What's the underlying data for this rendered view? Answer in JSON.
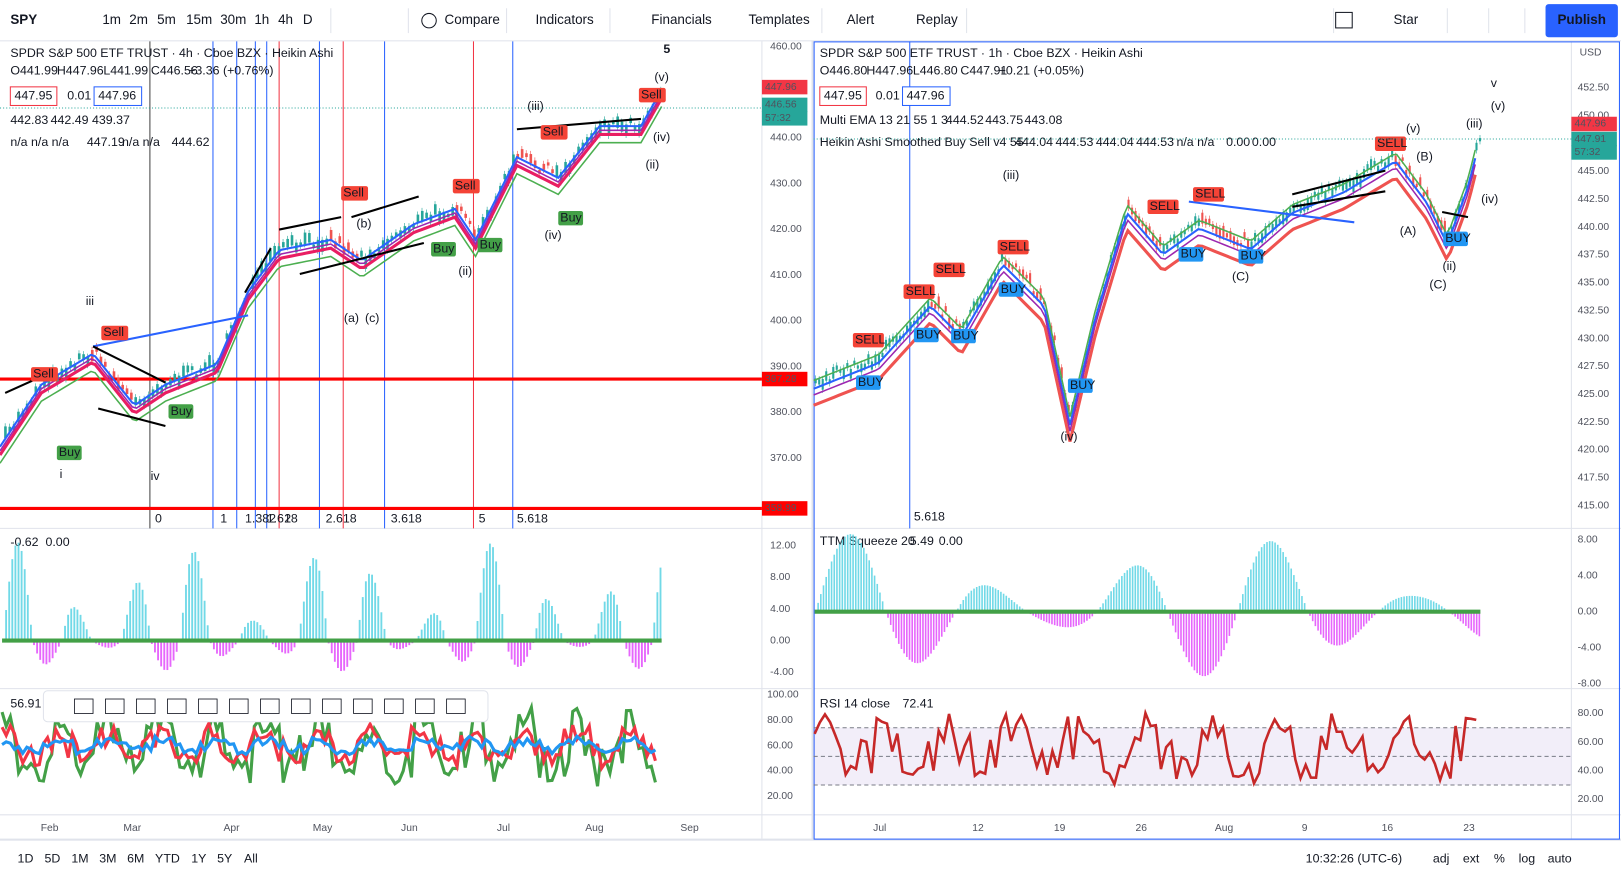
{
  "toolbar": {
    "symbol": "SPY",
    "intervals": [
      "1m",
      "2m",
      "5m",
      "15m",
      "30m",
      "1h",
      "4h",
      "D"
    ],
    "actions": [
      "Compare",
      "Indicators",
      "Financials",
      "Templates",
      "Alert",
      "Replay"
    ],
    "layout_name": "Star",
    "publish": "Publish"
  },
  "left": {
    "title": "SPDR S&P 500 ETF TRUST · 4h · Cboe BZX · Heikin Ashi",
    "ohlc": [
      "O441.99",
      "H447.96",
      "L441.99",
      "C446.56",
      "+3.36 (+0.76%)"
    ],
    "quote": [
      "447.95",
      "0.01",
      "447.96"
    ],
    "ema": [
      "442.83",
      "442.49",
      "439.37"
    ],
    "indicator": [
      "n/a n/a n/a",
      "447.19",
      "n/a n/a",
      "444.62"
    ],
    "price_ticks": [
      {
        "value": 460,
        "label": "460.00"
      },
      {
        "value": 440,
        "label": "440.00"
      },
      {
        "value": 430,
        "label": "430.00"
      },
      {
        "value": 420,
        "label": "420.00"
      },
      {
        "value": 410,
        "label": "410.00"
      },
      {
        "value": 400,
        "label": "400.00"
      },
      {
        "value": 390,
        "label": "390.00"
      },
      {
        "value": 380,
        "label": "380.00"
      },
      {
        "value": 370,
        "label": "370.00"
      }
    ],
    "last_price": 447.96,
    "close": 446.56,
    "countdown": "57:32",
    "levels": [
      387.28,
      358.99
    ],
    "fib_labels": [
      "0",
      "1",
      "1.382",
      "1.618",
      "2",
      "2.618",
      "3.618",
      "5",
      "5.618"
    ],
    "months": [
      "Feb",
      "Mar",
      "Apr",
      "May",
      "Jun",
      "Jul",
      "Aug",
      "Sep"
    ],
    "osc": {
      "values": [
        "-0.62",
        "0.00"
      ],
      "ticks": [
        {
          "value": 12,
          "label": "12.00"
        },
        {
          "value": 8,
          "label": "8.00"
        },
        {
          "value": 4,
          "label": "4.00"
        },
        {
          "value": 0,
          "label": "0.00"
        },
        {
          "value": -4,
          "label": "-4.00"
        }
      ]
    },
    "rsi": {
      "value": "56.91",
      "ticks": [
        {
          "value": 100,
          "label": "100.00"
        },
        {
          "value": 80,
          "label": "80.00"
        },
        {
          "value": 60,
          "label": "60.00"
        },
        {
          "value": 40,
          "label": "40.00"
        },
        {
          "value": 20,
          "label": "20.00"
        }
      ]
    },
    "waves": [
      "5",
      "iii",
      "i",
      "iv",
      "(iii)",
      "(iv)",
      "(ii)",
      "(a)",
      "(b)",
      "(c)",
      "(v)"
    ],
    "signals": [
      "Buy",
      "Sell"
    ]
  },
  "right": {
    "title": "SPDR S&P 500 ETF TRUST · 1h · Cboe BZX · Heikin Ashi",
    "ohlc": [
      "O446.80",
      "H447.96",
      "L446.80",
      "C447.91",
      "+0.21 (+0.05%)"
    ],
    "quote": [
      "447.95",
      "0.01",
      "447.96"
    ],
    "ema_name": "Multi EMA 13 21 55 1 3",
    "ema": [
      "444.52",
      "443.75",
      "443.08"
    ],
    "ha_name": "Heikin Ashi Smoothed Buy Sell v4 55",
    "ha": [
      "444.04",
      "444.53",
      "444.04",
      "444.53",
      "n/a n/a",
      "0.00",
      "0.00"
    ],
    "price_ticks": [
      {
        "value": 452.5,
        "label": "452.50"
      },
      {
        "value": 450,
        "label": "450.00"
      },
      {
        "value": 445,
        "label": "445.00"
      },
      {
        "value": 442.5,
        "label": "442.50"
      },
      {
        "value": 440,
        "label": "440.00"
      },
      {
        "value": 437.5,
        "label": "437.50"
      },
      {
        "value": 435,
        "label": "435.00"
      },
      {
        "value": 432.5,
        "label": "432.50"
      },
      {
        "value": 430,
        "label": "430.00"
      },
      {
        "value": 427.5,
        "label": "427.50"
      },
      {
        "value": 425,
        "label": "425.00"
      },
      {
        "value": 422.5,
        "label": "422.50"
      },
      {
        "value": 420,
        "label": "420.00"
      },
      {
        "value": 417.5,
        "label": "417.50"
      },
      {
        "value": 415,
        "label": "415.00"
      }
    ],
    "last_price": 447.96,
    "close": 447.91,
    "countdown": "57:32",
    "fib_label": "5.618",
    "dates": [
      "Jul",
      "12",
      "19",
      "26",
      "Aug",
      "9",
      "16",
      "23"
    ],
    "osc": {
      "name": "TTM Squeeze 20",
      "values": [
        "5.49",
        "0.00"
      ],
      "ticks": [
        {
          "value": 8,
          "label": "8.00"
        },
        {
          "value": 4,
          "label": "4.00"
        },
        {
          "value": 0,
          "label": "0.00"
        },
        {
          "value": -4,
          "label": "-4.00"
        },
        {
          "value": -8,
          "label": "-8.00"
        }
      ]
    },
    "rsi": {
      "name": "RSI 14 close",
      "value": "72.41",
      "ticks": [
        {
          "value": 80,
          "label": "80.00"
        },
        {
          "value": 60,
          "label": "60.00"
        },
        {
          "value": 40,
          "label": "40.00"
        },
        {
          "value": 20,
          "label": "20.00"
        }
      ]
    },
    "waves": [
      "(iii)",
      "(iv)",
      "(v)",
      "v",
      "(ii)",
      "(A)",
      "(B)",
      "(C)"
    ],
    "signals": [
      "BUY",
      "SELL"
    ],
    "currency": "USD"
  },
  "bottom": {
    "ranges": [
      "1D",
      "5D",
      "1M",
      "3M",
      "6M",
      "YTD",
      "1Y",
      "5Y",
      "All"
    ],
    "time": "10:32:26 (UTC-6)",
    "options": [
      "adj",
      "ext",
      "%",
      "log",
      "auto"
    ]
  }
}
